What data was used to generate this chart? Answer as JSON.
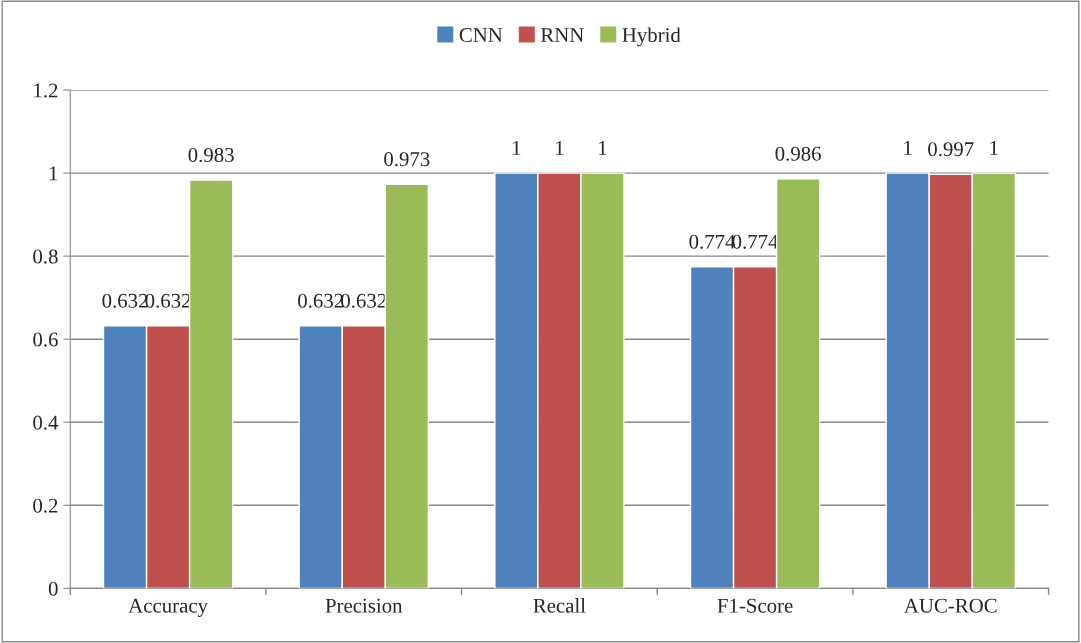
{
  "chart_data": {
    "type": "bar",
    "categories": [
      "Accuracy",
      "Precision",
      "Recall",
      "F1-Score",
      "AUC-ROC"
    ],
    "series": [
      {
        "name": "CNN",
        "color": "#4f81bd",
        "values": [
          0.632,
          0.632,
          1,
          0.774,
          1
        ]
      },
      {
        "name": "RNN",
        "color": "#c0504d",
        "values": [
          0.632,
          0.632,
          1,
          0.774,
          0.997
        ]
      },
      {
        "name": "Hybrid",
        "color": "#9bbb59",
        "values": [
          0.983,
          0.973,
          1,
          0.986,
          1
        ]
      }
    ],
    "ylim": [
      0,
      1.2
    ],
    "yticks": [
      0,
      0.2,
      0.4,
      0.6,
      0.8,
      1,
      1.2
    ],
    "grid": "y",
    "legend": "top",
    "data_labels": true
  }
}
